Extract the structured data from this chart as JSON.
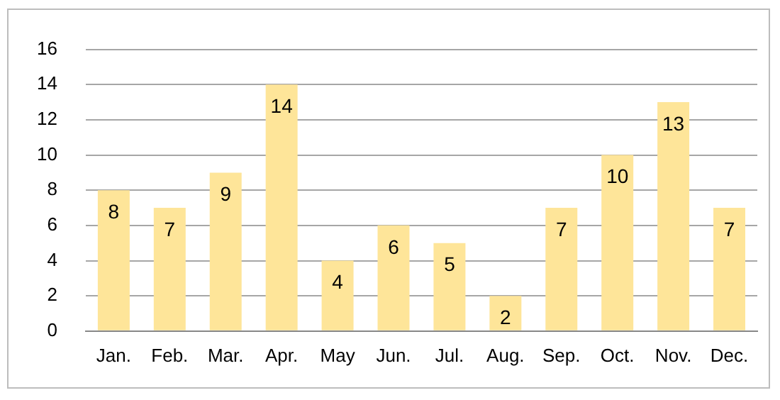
{
  "chart_data": {
    "type": "bar",
    "categories": [
      "Jan.",
      "Feb.",
      "Mar.",
      "Apr.",
      "May",
      "Jun.",
      "Jul.",
      "Aug.",
      "Sep.",
      "Oct.",
      "Nov.",
      "Dec."
    ],
    "values": [
      8,
      7,
      9,
      14,
      4,
      6,
      5,
      2,
      7,
      10,
      13,
      7
    ],
    "color": "#fee599",
    "ylim": [
      0,
      16
    ],
    "yticks": [
      0,
      2,
      4,
      6,
      8,
      10,
      12,
      14,
      16
    ],
    "grid": "y",
    "data_labels": true
  }
}
